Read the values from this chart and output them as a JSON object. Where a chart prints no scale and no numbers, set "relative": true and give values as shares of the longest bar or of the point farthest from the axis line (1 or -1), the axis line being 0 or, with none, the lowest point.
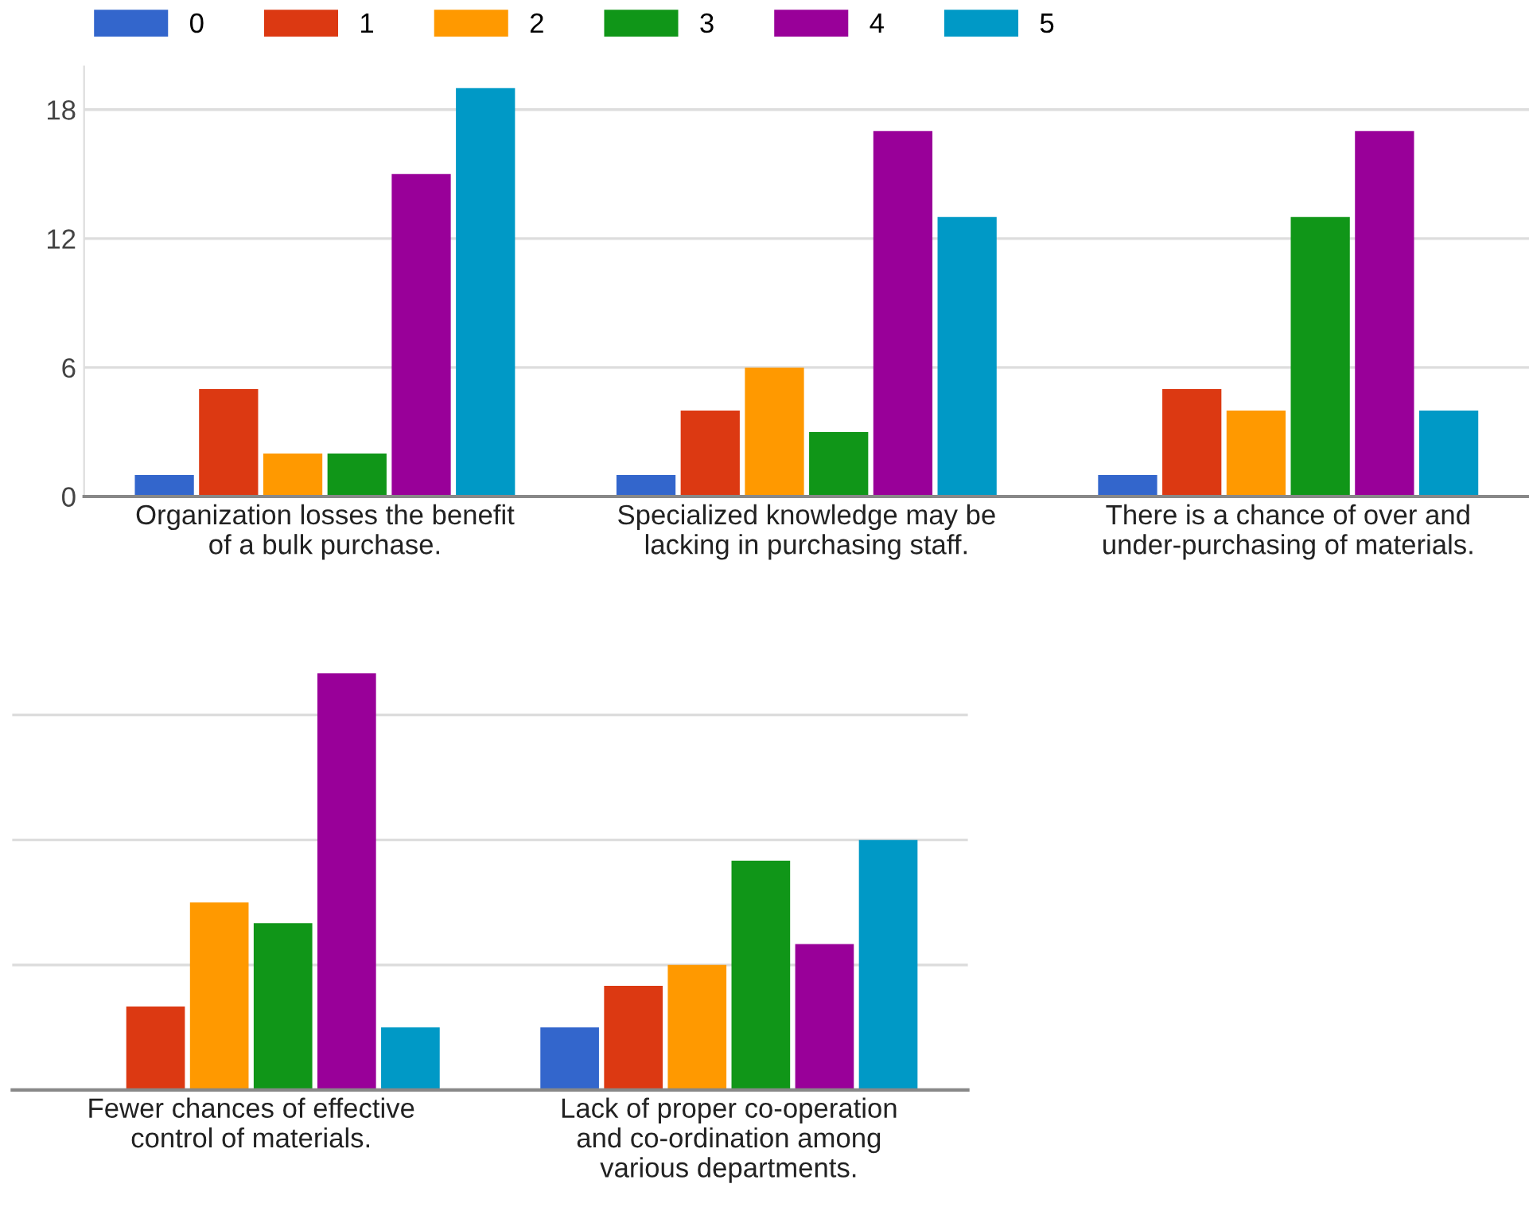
{
  "chart_data": [
    {
      "type": "bar",
      "categories": [
        "Organization losses the benefit\nof a bulk purchase.",
        "Specialized knowledge may be\nlacking in purchasing staff.",
        "There is a chance of over and\nunder-purchasing of materials."
      ],
      "series": [
        {
          "name": "0",
          "color": "#3366cc",
          "values": [
            1,
            1,
            1
          ]
        },
        {
          "name": "1",
          "color": "#dc3912",
          "values": [
            5,
            4,
            5
          ]
        },
        {
          "name": "2",
          "color": "#ff9900",
          "values": [
            2,
            6,
            4
          ]
        },
        {
          "name": "3",
          "color": "#109618",
          "values": [
            2,
            3,
            13
          ]
        },
        {
          "name": "4",
          "color": "#990099",
          "values": [
            15,
            17,
            17
          ]
        },
        {
          "name": "5",
          "color": "#0099c6",
          "values": [
            19,
            13,
            4
          ]
        }
      ],
      "ylim": [
        0,
        20
      ],
      "yticks": [
        0,
        6,
        12,
        18
      ],
      "grid": "y",
      "legend": "top left"
    },
    {
      "type": "bar",
      "relative": true,
      "categories": [
        "Fewer chances of effective\ncontrol of materials.",
        "Lack of proper co-operation\nand co-ordination among\nvarious departments."
      ],
      "series": [
        {
          "color": "#3366cc",
          "values": [
            0,
            0.15
          ]
        },
        {
          "color": "#dc3912",
          "values": [
            0.2,
            0.25
          ]
        },
        {
          "color": "#ff9900",
          "values": [
            0.45,
            0.3
          ]
        },
        {
          "color": "#109618",
          "values": [
            0.4,
            0.55
          ]
        },
        {
          "color": "#990099",
          "values": [
            1,
            0.35
          ]
        },
        {
          "color": "#0099c6",
          "values": [
            0.15,
            0.6
          ]
        }
      ],
      "grid": "y",
      "tick_labels": "x"
    }
  ]
}
